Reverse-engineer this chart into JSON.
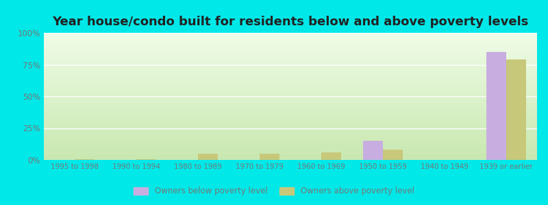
{
  "title": "Year house/condo built for residents below and above poverty levels",
  "categories": [
    "1995 to 1998",
    "1990 to 1994",
    "1980 to 1989",
    "1970 to 1979",
    "1960 to 1969",
    "1950 to 1959",
    "1940 to 1949",
    "1939 or earlier"
  ],
  "below_poverty": [
    0.0,
    0.0,
    0.0,
    0.0,
    0.0,
    15.0,
    0.0,
    85.0
  ],
  "above_poverty": [
    0.5,
    0.5,
    5.0,
    5.0,
    6.0,
    8.0,
    0.0,
    79.0
  ],
  "below_color": "#c8aee0",
  "above_color": "#c8c87a",
  "bg_top_color": "#c8e8b0",
  "bg_bottom_color": "#f0fce8",
  "outer_background": "#00e8e8",
  "ylim": [
    0,
    100
  ],
  "yticks": [
    0,
    25,
    50,
    75,
    100
  ],
  "ytick_labels": [
    "0%",
    "25%",
    "50%",
    "75%",
    "100%"
  ],
  "legend_below": "Owners below poverty level",
  "legend_above": "Owners above poverty level",
  "title_fontsize": 13,
  "bar_width": 0.32,
  "grid_color": "#ffffff",
  "tick_color": "#777777",
  "title_color": "#222222"
}
